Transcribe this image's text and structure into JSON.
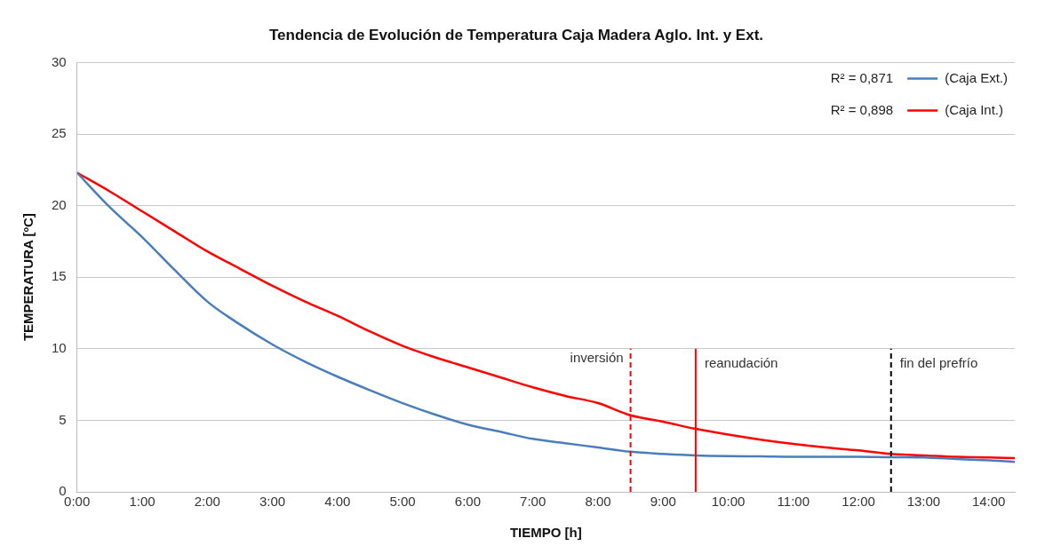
{
  "chart_data": {
    "type": "line",
    "title": "Tendencia de Evolución de Temperatura Caja Madera Aglo. Int. y Ext.",
    "xlabel": "TIEMPO [h]",
    "ylabel": "TEMPERATURA [ºC]",
    "x": [
      0,
      0.5,
      1,
      1.5,
      2,
      2.5,
      3,
      3.5,
      4,
      4.5,
      5,
      5.5,
      6,
      6.5,
      7,
      7.5,
      8,
      8.5,
      9,
      9.5,
      10,
      10.5,
      11,
      11.5,
      12,
      12.5,
      13,
      13.5,
      14,
      14.4
    ],
    "series": [
      {
        "name": "(Caja Ext.)",
        "color": "#4a7ebb",
        "values": [
          22.3,
          19.9,
          17.8,
          15.5,
          13.3,
          11.7,
          10.3,
          9.1,
          8.05,
          7.1,
          6.2,
          5.4,
          4.7,
          4.2,
          3.7,
          3.4,
          3.1,
          2.8,
          2.65,
          2.55,
          2.5,
          2.48,
          2.45,
          2.45,
          2.45,
          2.42,
          2.4,
          2.3,
          2.2,
          2.1
        ]
      },
      {
        "name": "(Caja Int.)",
        "color": "#ff0000",
        "values": [
          22.3,
          21.0,
          19.6,
          18.2,
          16.8,
          15.6,
          14.4,
          13.3,
          12.3,
          11.2,
          10.2,
          9.4,
          8.7,
          8.0,
          7.3,
          6.7,
          6.2,
          5.35,
          4.9,
          4.4,
          4.0,
          3.65,
          3.35,
          3.1,
          2.9,
          2.65,
          2.55,
          2.45,
          2.4,
          2.35
        ]
      }
    ],
    "annotations": [
      "R² = 0,871",
      "R² = 0,898"
    ],
    "ref_lines": [
      {
        "axis": "x",
        "value": 8.5,
        "label": "inversión",
        "color": "#ff0000",
        "line_style": "dashed"
      },
      {
        "axis": "x",
        "value": 9.5,
        "label": "reanudación",
        "color": "#ff0000",
        "line_style": "solid"
      },
      {
        "axis": "x",
        "value": 12.5,
        "label": "fin del prefrío",
        "color": "#000000",
        "line_style": "dashed"
      }
    ],
    "xlim": [
      0,
      14.4
    ],
    "xticks": [
      {
        "value": 0,
        "label": "0:00"
      },
      {
        "value": 1,
        "label": "1:00"
      },
      {
        "value": 2,
        "label": "2:00"
      },
      {
        "value": 3,
        "label": "3:00"
      },
      {
        "value": 4,
        "label": "4:00"
      },
      {
        "value": 5,
        "label": "5:00"
      },
      {
        "value": 6,
        "label": "6:00"
      },
      {
        "value": 7,
        "label": "7:00"
      },
      {
        "value": 8,
        "label": "8:00"
      },
      {
        "value": 9,
        "label": "9:00"
      },
      {
        "value": 10,
        "label": "10:00"
      },
      {
        "value": 11,
        "label": "11:00"
      },
      {
        "value": 12,
        "label": "12:00"
      },
      {
        "value": 13,
        "label": "13:00"
      },
      {
        "value": 14,
        "label": "14:00"
      }
    ],
    "ylim": [
      0,
      30
    ],
    "yticks": [
      0,
      5,
      10,
      15,
      20,
      25,
      30
    ],
    "grid": "y",
    "legend": "top right",
    "marker": "none",
    "line_style": "solid"
  }
}
